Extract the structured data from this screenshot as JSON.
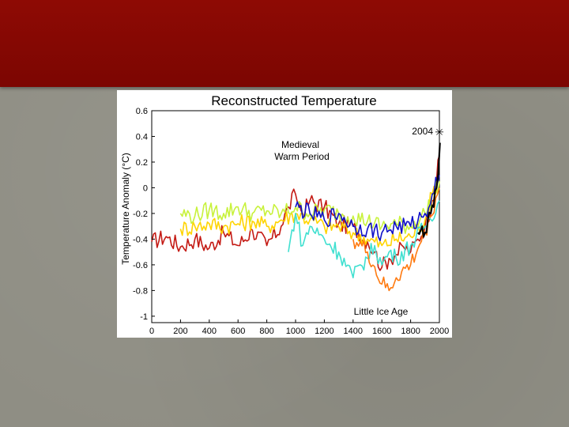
{
  "slide": {
    "title_band_color": "#8e0a04",
    "background_color": "#8f8e84"
  },
  "chart_data": {
    "type": "line",
    "title": "Reconstructed Temperature",
    "xlabel": "",
    "ylabel": "Temperature Anomaly (°C)",
    "xlim": [
      0,
      2000
    ],
    "ylim": [
      -1.05,
      0.6
    ],
    "xticks": [
      "0",
      "200",
      "400",
      "600",
      "800",
      "1000",
      "1200",
      "1400",
      "1600",
      "1800",
      "2000"
    ],
    "yticks": [
      "0.6",
      "0.4",
      "0.2",
      "0",
      "-0.2",
      "-0.4",
      "-0.6",
      "-0.8",
      "-1"
    ],
    "grid": false,
    "annotations": {
      "mwp_line1": "Medieval",
      "mwp_line2": "Warm Period",
      "lia": "Little Ice Age",
      "year": "2004",
      "star": "✳"
    },
    "series": [
      {
        "color": "#c41a14",
        "x": [
          0,
          100,
          200,
          300,
          400,
          500,
          600,
          700,
          800,
          900,
          950,
          1000,
          1050,
          1100,
          1200,
          1300,
          1400,
          1500,
          1550,
          1600,
          1650,
          1700,
          1750,
          1800,
          1850,
          1900,
          1950,
          1980,
          2000
        ],
        "y": [
          -0.42,
          -0.38,
          -0.46,
          -0.4,
          -0.47,
          -0.35,
          -0.45,
          -0.33,
          -0.45,
          -0.3,
          -0.15,
          -0.05,
          -0.2,
          -0.1,
          -0.15,
          -0.28,
          -0.3,
          -0.42,
          -0.5,
          -0.62,
          -0.55,
          -0.52,
          -0.46,
          -0.5,
          -0.4,
          -0.3,
          -0.1,
          0.05,
          0.25
        ]
      },
      {
        "color": "#ffd400",
        "x": [
          200,
          300,
          400,
          500,
          600,
          700,
          800,
          900,
          1000,
          1100,
          1200,
          1300,
          1400,
          1500,
          1600,
          1700,
          1800,
          1900,
          1950,
          2000
        ],
        "y": [
          -0.32,
          -0.3,
          -0.28,
          -0.3,
          -0.28,
          -0.26,
          -0.3,
          -0.25,
          -0.2,
          -0.25,
          -0.3,
          -0.3,
          -0.35,
          -0.4,
          -0.45,
          -0.4,
          -0.38,
          -0.25,
          -0.05,
          0.1
        ]
      },
      {
        "color": "#c8f23c",
        "x": [
          200,
          300,
          400,
          500,
          600,
          700,
          800,
          900,
          1000,
          1100,
          1200,
          1300,
          1400,
          1500,
          1600,
          1700,
          1800,
          1900,
          2000
        ],
        "y": [
          -0.2,
          -0.22,
          -0.17,
          -0.2,
          -0.15,
          -0.2,
          -0.18,
          -0.2,
          -0.15,
          -0.2,
          -0.17,
          -0.2,
          -0.22,
          -0.26,
          -0.3,
          -0.28,
          -0.3,
          -0.2,
          0.05
        ]
      },
      {
        "color": "#40e0d0",
        "x": [
          950,
          1000,
          1050,
          1100,
          1200,
          1300,
          1400,
          1450,
          1500,
          1550,
          1600,
          1650,
          1700,
          1800,
          1900,
          2000
        ],
        "y": [
          -0.5,
          -0.2,
          -0.45,
          -0.3,
          -0.4,
          -0.5,
          -0.7,
          -0.6,
          -0.55,
          -0.45,
          -0.6,
          -0.5,
          -0.55,
          -0.45,
          -0.3,
          -0.1
        ]
      },
      {
        "color": "#1010c8",
        "x": [
          1000,
          1100,
          1200,
          1300,
          1400,
          1500,
          1600,
          1700,
          1800,
          1900,
          1950,
          2000
        ],
        "y": [
          -0.15,
          -0.2,
          -0.25,
          -0.2,
          -0.3,
          -0.32,
          -0.35,
          -0.3,
          -0.3,
          -0.2,
          -0.05,
          0.1
        ]
      },
      {
        "color": "#ff7a10",
        "x": [
          1400,
          1500,
          1600,
          1650,
          1700,
          1800,
          1900,
          2000
        ],
        "y": [
          -0.4,
          -0.5,
          -0.75,
          -0.8,
          -0.7,
          -0.6,
          -0.35,
          0.0
        ]
      },
      {
        "color": "#000000",
        "x": [
          1850,
          1880,
          1910,
          1940,
          1960,
          1980,
          2004
        ],
        "y": [
          -0.35,
          -0.3,
          -0.35,
          -0.2,
          -0.15,
          0.0,
          0.35
        ]
      }
    ]
  }
}
